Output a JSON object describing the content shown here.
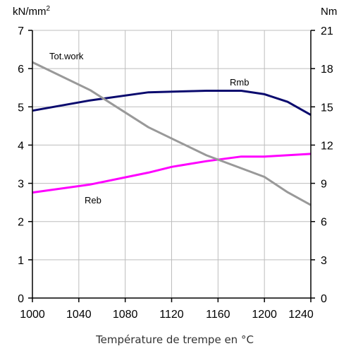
{
  "chart_data": {
    "type": "line",
    "xlabel": "Température de trempe en °C",
    "ylabel_left": "kN/mm",
    "ylabel_left_sup": "2",
    "ylabel_right": "Nm",
    "xlim": [
      1000,
      1240
    ],
    "x_ticks": [
      1000,
      1040,
      1080,
      1120,
      1160,
      1200,
      1240
    ],
    "ylim_left": [
      0,
      7
    ],
    "y_ticks_left": [
      0,
      1,
      2,
      3,
      4,
      5,
      6,
      7
    ],
    "ylim_right": [
      0,
      21
    ],
    "y_ticks_right": [
      0,
      3,
      6,
      9,
      12,
      15,
      18,
      21
    ],
    "grid": true,
    "series": [
      {
        "name": "Rmb",
        "axis": "left",
        "color": "#0a0a6e",
        "x": [
          1000,
          1050,
          1100,
          1150,
          1180,
          1200,
          1220,
          1240
        ],
        "y": [
          4.9,
          5.17,
          5.38,
          5.42,
          5.42,
          5.33,
          5.13,
          4.79
        ]
      },
      {
        "name": "Reb",
        "axis": "left",
        "color": "#ff00ff",
        "x": [
          1000,
          1050,
          1100,
          1120,
          1150,
          1180,
          1200,
          1240
        ],
        "y": [
          2.76,
          2.97,
          3.28,
          3.43,
          3.58,
          3.7,
          3.7,
          3.77
        ]
      },
      {
        "name": "Tot.work",
        "axis": "right",
        "color": "#999999",
        "x": [
          1000,
          1050,
          1100,
          1150,
          1200,
          1220,
          1240
        ],
        "y": [
          18.5,
          16.3,
          13.4,
          11.2,
          9.5,
          8.3,
          7.3
        ]
      }
    ]
  }
}
